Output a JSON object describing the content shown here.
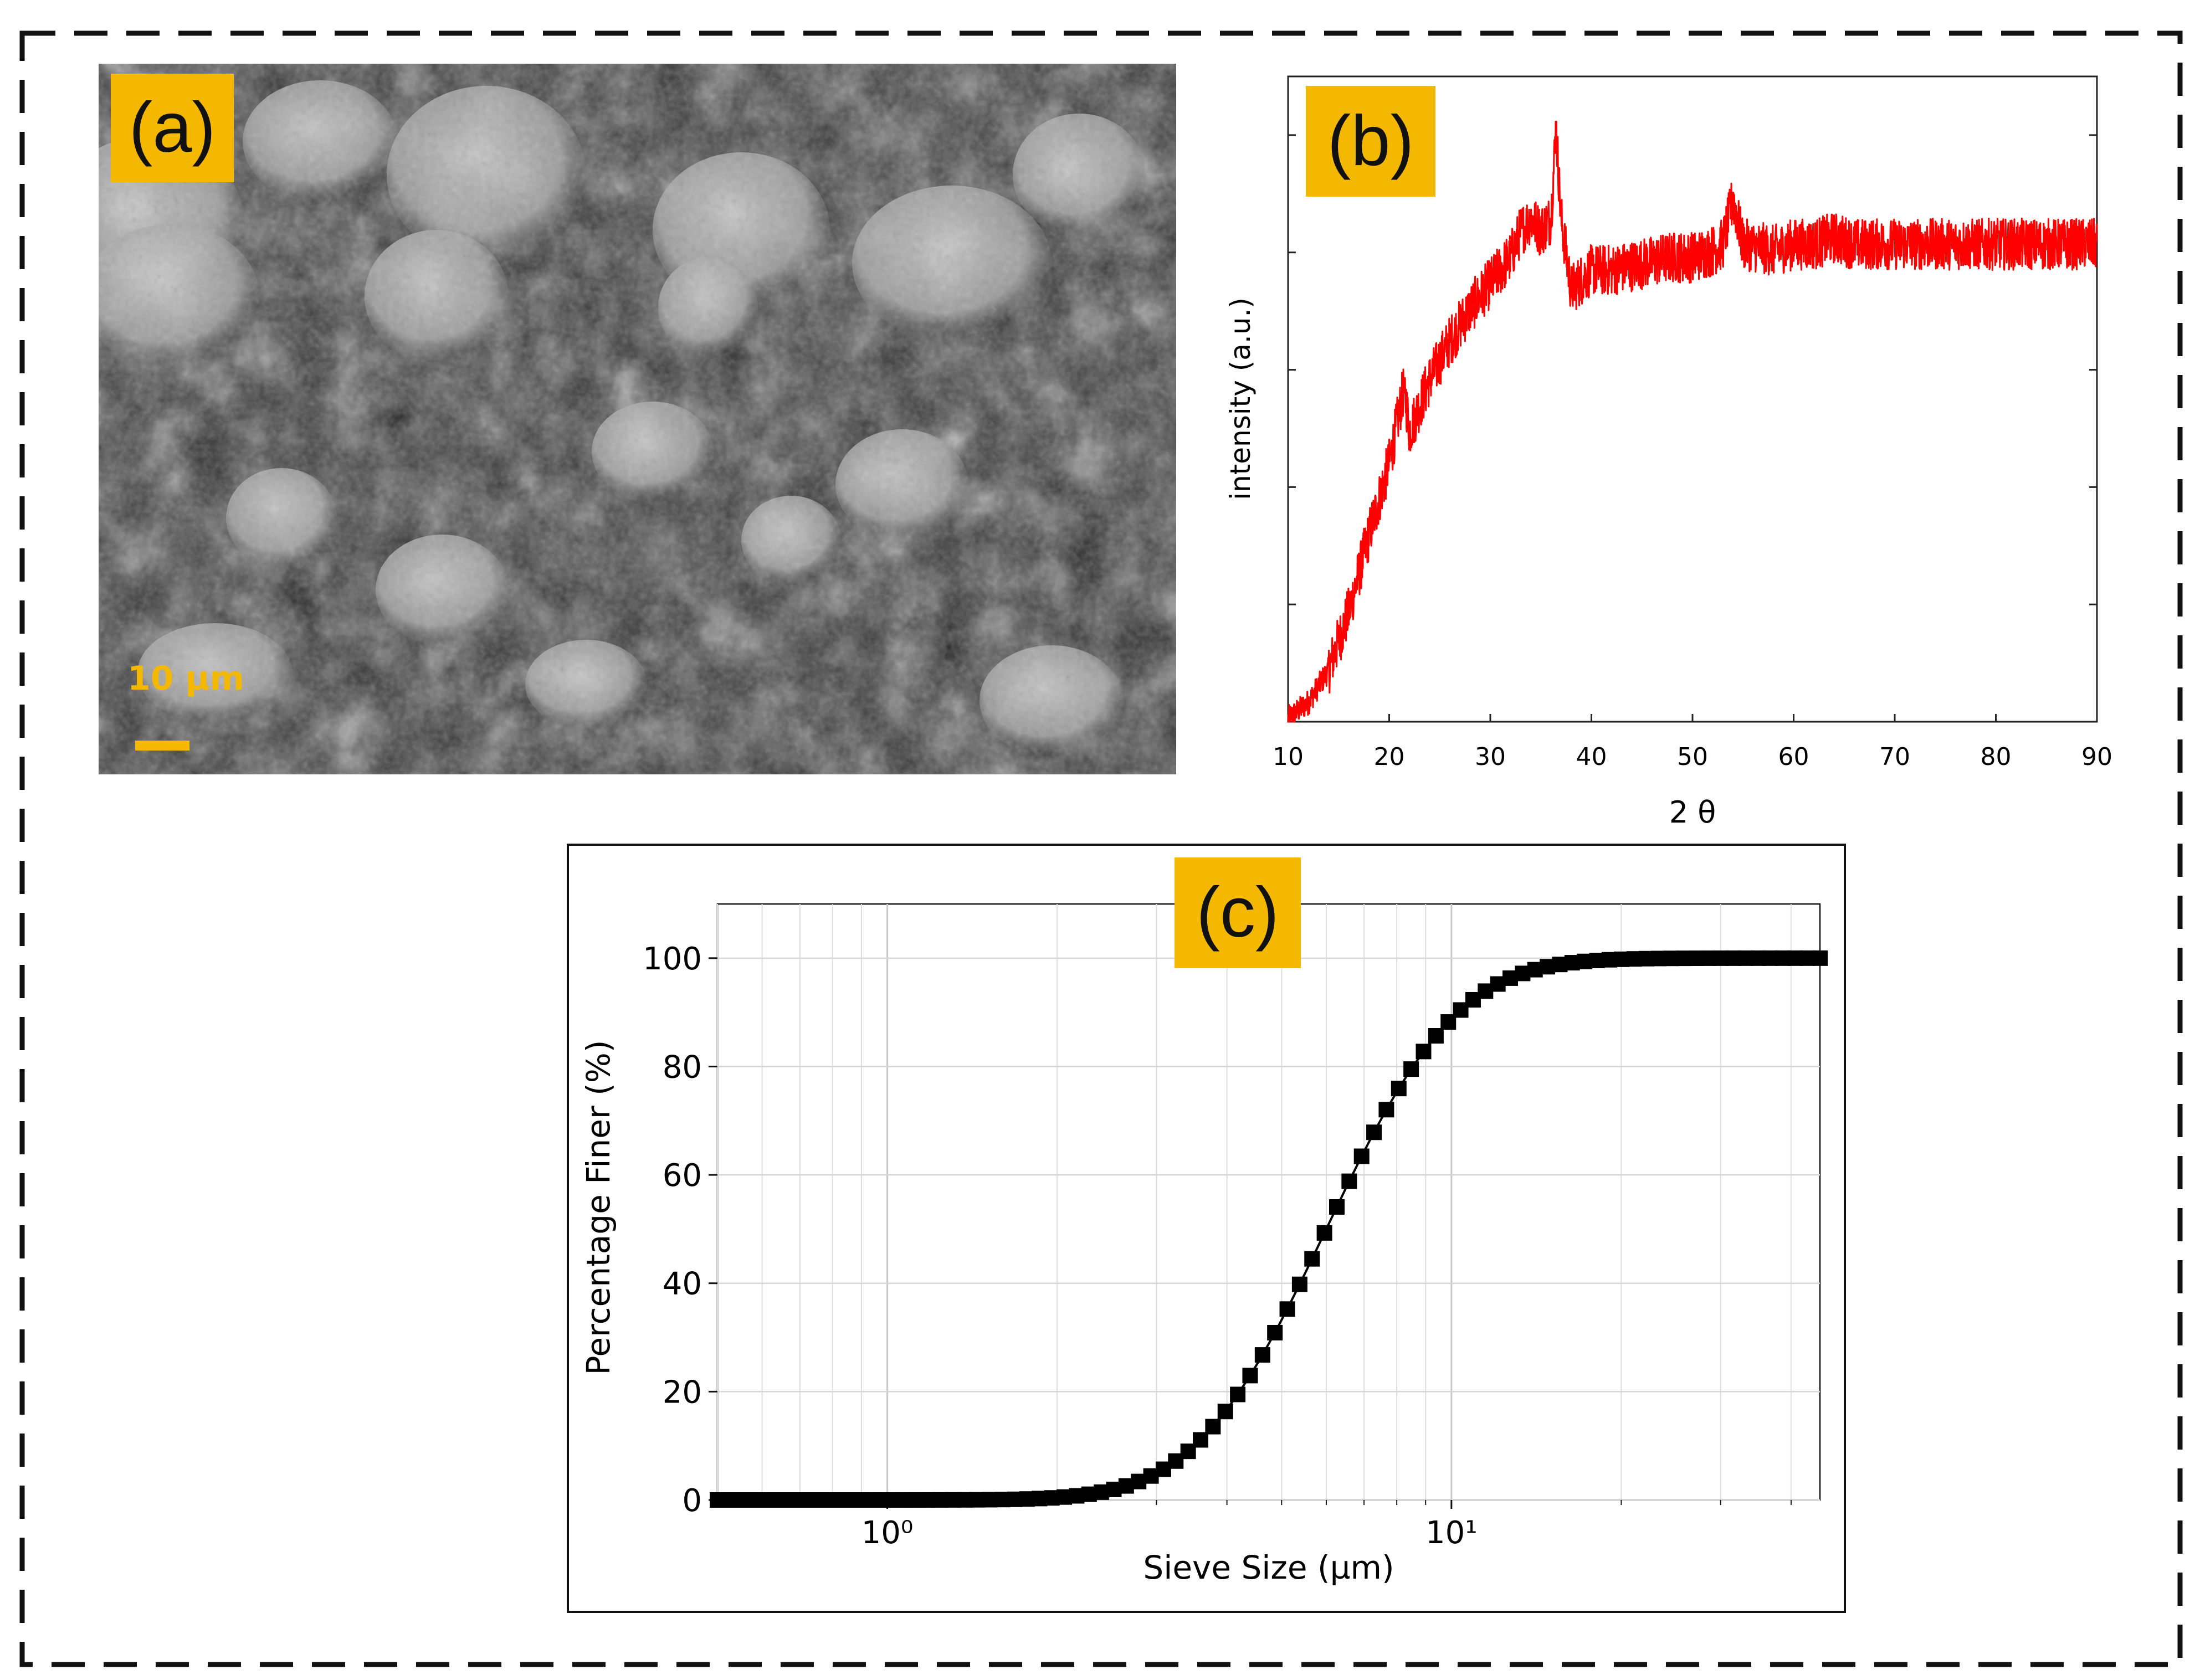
{
  "figure": {
    "panel_a": {
      "tag": "(a)",
      "scale_bar_label": "10 µm"
    },
    "panel_b": {
      "tag": "(b)"
    },
    "panel_c": {
      "tag": "(c)"
    },
    "colors": {
      "tag_background": "#f5b800",
      "xrd_line": "#ff0000",
      "psd_marker": "#000000"
    }
  },
  "chart_data": [
    {
      "type": "line",
      "panel": "b",
      "title": "",
      "xlabel": "2 θ",
      "ylabel": "intensity (a.u.)",
      "xlim": [
        10,
        90
      ],
      "ylim": [
        0,
        100
      ],
      "x_ticks": [
        10,
        20,
        30,
        40,
        50,
        60,
        70,
        80,
        90
      ],
      "y_tick_labels_shown": false,
      "grid": false,
      "series": [
        {
          "color": "#ff0000",
          "x": [
            10,
            12,
            14,
            16,
            18,
            20,
            21.5,
            22,
            24,
            26,
            28,
            30,
            32,
            33,
            34,
            35,
            36,
            36.5,
            37,
            38,
            40,
            42,
            45,
            48,
            50,
            52,
            53,
            54,
            55,
            58,
            60,
            62,
            64,
            66,
            70,
            75,
            80,
            85,
            90
          ],
          "y": [
            0.5,
            3,
            8,
            17,
            29,
            40,
            52,
            45,
            53,
            59,
            64,
            68,
            72,
            76,
            78,
            76,
            78,
            92,
            78,
            67,
            70,
            70,
            71,
            72,
            72,
            73,
            74,
            81,
            74,
            73,
            74,
            74,
            75,
            74,
            74,
            74,
            74,
            74,
            74
          ],
          "noise_amplitude": 4,
          "sharp_peaks": [
            {
              "x": 36.5,
              "y": 93
            },
            {
              "x": 54.0,
              "y": 82
            },
            {
              "x": 33.5,
              "y": 75
            },
            {
              "x": 21.5,
              "y": 53
            }
          ]
        }
      ]
    },
    {
      "type": "scatter",
      "panel": "c",
      "title": "",
      "xlabel": "Sieve Size (µm)",
      "ylabel": "Percentage Finer (%)",
      "xscale": "log",
      "xlim": [
        0.5,
        45
      ],
      "ylim": [
        0,
        110
      ],
      "x_tick_labels": [
        "10⁰",
        "10¹"
      ],
      "x_ticks": [
        1,
        10
      ],
      "y_ticks": [
        0,
        20,
        40,
        60,
        80,
        100
      ],
      "grid": true,
      "marker": "square",
      "connected": true,
      "curve": {
        "model": "lognormal-cdf",
        "median_um": 6.0,
        "sigma_ln": 0.42,
        "x_min": 0.5,
        "x_max": 45,
        "n_points": 90
      }
    }
  ]
}
